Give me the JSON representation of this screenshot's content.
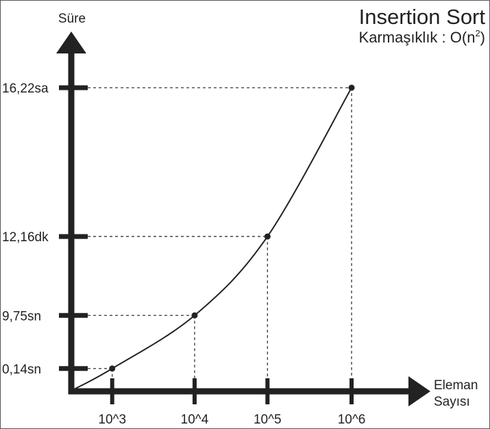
{
  "chart_data": {
    "type": "line",
    "title": "Insertion Sort",
    "subtitle": {
      "prefix": "Karmaşıklık : O(n",
      "superscript": "2",
      "suffix": ")"
    },
    "ylabel": "Süre",
    "xlabel_lines": [
      "Eleman",
      "Sayısı"
    ],
    "categories": [
      "10^3",
      "10^4",
      "10^5",
      "10^6"
    ],
    "points": [
      {
        "x": "10^3",
        "y": "0,14sn"
      },
      {
        "x": "10^4",
        "y": "9,75sn"
      },
      {
        "x": "10^5",
        "y": "12,16dk"
      },
      {
        "x": "10^6",
        "y": "16,22sa"
      }
    ],
    "y_tick_labels": [
      "0,14sn",
      "9,75sn",
      "12,16dk",
      "16,22sa"
    ],
    "y_tick_fractions": [
      0.075,
      0.25,
      0.51,
      1.0
    ],
    "x_tick_fractions": [
      0.146,
      0.44,
      0.7,
      1.0
    ],
    "grid": false,
    "guide_lines": "dotted",
    "colors": {
      "axis": "#222222",
      "curve": "#222222",
      "guide": "#333333"
    }
  }
}
